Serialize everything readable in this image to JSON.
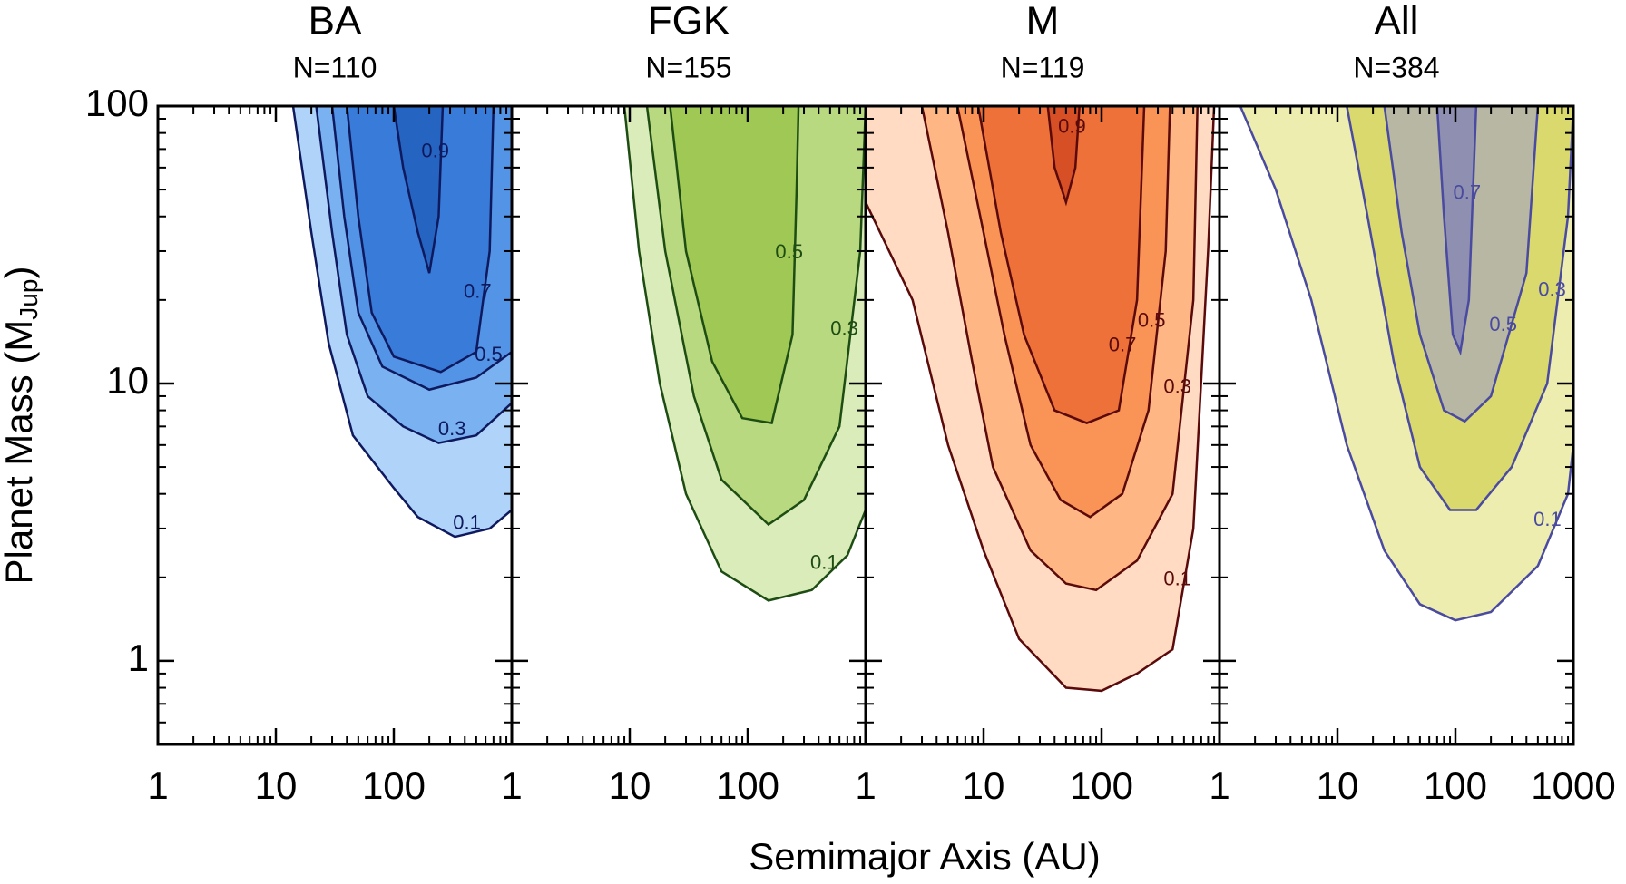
{
  "axes": {
    "xlabel": "Semimajor Axis (AU)",
    "ylabel": [
      "Planet Mass (M",
      "Jup",
      ")"
    ]
  },
  "chart_data": [
    {
      "type": "contour",
      "title": "BA",
      "subtitle": "N=110",
      "line_color": "#0f1a5e",
      "xlim": [
        1,
        1000
      ],
      "ylim": [
        0.5,
        100
      ],
      "log_x": true,
      "log_y": true,
      "xticks": [
        1,
        10,
        100
      ],
      "yticks": [
        1,
        10,
        100
      ],
      "contours": [
        {
          "level": 0.1,
          "color": "#2f8ff0",
          "x": [
            14,
            20,
            28,
            45,
            100,
            160,
            330,
            650,
            1000
          ],
          "y": [
            100,
            35,
            14,
            6.5,
            4.2,
            3.3,
            2.8,
            3.0,
            3.5
          ]
        },
        {
          "level": 0.3,
          "color": "#1f7ae6",
          "x": [
            22,
            30,
            40,
            60,
            120,
            240,
            500,
            1000
          ],
          "y": [
            100,
            35,
            15,
            9,
            7,
            6.1,
            6.5,
            8.5
          ]
        },
        {
          "level": 0.5,
          "color": "#1466d8",
          "x": [
            30,
            38,
            50,
            80,
            200,
            500,
            1000
          ],
          "y": [
            100,
            40,
            18,
            11.5,
            9.5,
            10.5,
            13
          ]
        },
        {
          "level": 0.7,
          "color": "#0d54c0",
          "x": [
            40,
            50,
            65,
            100,
            250,
            500,
            650,
            700
          ],
          "y": [
            100,
            40,
            18,
            12.5,
            11,
            13,
            30,
            100
          ]
        },
        {
          "level": 0.9,
          "color": "#0a3f9a",
          "x": [
            100,
            120,
            160,
            200,
            240,
            260
          ],
          "y": [
            100,
            60,
            35,
            25,
            40,
            100
          ]
        }
      ]
    },
    {
      "type": "contour",
      "title": "FGK",
      "subtitle": "N=155",
      "line_color": "#1e4d14",
      "xlim": [
        1,
        1000
      ],
      "ylim": [
        0.5,
        100
      ],
      "log_x": true,
      "log_y": true,
      "xticks": [
        1,
        10,
        100
      ],
      "yticks": [
        1,
        10,
        100
      ],
      "contours": [
        {
          "level": 0.1,
          "color": "#9ccc4a",
          "x": [
            9,
            12,
            18,
            30,
            60,
            150,
            350,
            700,
            1000
          ],
          "y": [
            100,
            30,
            10,
            4,
            2.1,
            1.65,
            1.8,
            2.4,
            3.5
          ]
        },
        {
          "level": 0.3,
          "color": "#86bb22",
          "x": [
            14,
            20,
            35,
            60,
            150,
            300,
            600,
            900,
            1000
          ],
          "y": [
            100,
            30,
            9,
            4.5,
            3.1,
            3.8,
            7,
            30,
            100
          ]
        },
        {
          "level": 0.5,
          "color": "#76ad0e",
          "x": [
            22,
            30,
            50,
            90,
            160,
            240,
            260,
            270
          ],
          "y": [
            100,
            30,
            12,
            7.5,
            7.2,
            15,
            50,
            100
          ]
        }
      ]
    },
    {
      "type": "contour",
      "title": "M",
      "subtitle": "N=119",
      "line_color": "#5a0a0a",
      "xlim": [
        1,
        1000
      ],
      "ylim": [
        0.5,
        100
      ],
      "log_x": true,
      "log_y": true,
      "xticks": [
        1,
        10,
        100
      ],
      "yticks": [
        1,
        10,
        100
      ],
      "contours": [
        {
          "level": 0.1,
          "color": "#ffa060",
          "x": [
            1,
            2.5,
            5,
            10,
            20,
            50,
            100,
            200,
            400,
            600,
            800,
            900
          ],
          "y": [
            45,
            20,
            6,
            2.5,
            1.2,
            0.8,
            0.78,
            0.9,
            1.1,
            3,
            30,
            100
          ]
        },
        {
          "level": 0.3,
          "color": "#ff7a20",
          "x": [
            3,
            5,
            8,
            12,
            25,
            50,
            90,
            200,
            400,
            600,
            650
          ],
          "y": [
            100,
            35,
            12,
            5,
            2.5,
            1.9,
            1.8,
            2.3,
            4,
            20,
            100
          ]
        },
        {
          "level": 0.5,
          "color": "#f25a0a",
          "x": [
            6,
            10,
            15,
            25,
            45,
            80,
            150,
            250,
            350,
            380
          ],
          "y": [
            100,
            35,
            15,
            6,
            3.8,
            3.3,
            4,
            8,
            30,
            100
          ]
        },
        {
          "level": 0.7,
          "color": "#d83a08",
          "x": [
            9,
            14,
            22,
            40,
            75,
            140,
            200,
            230
          ],
          "y": [
            100,
            35,
            15,
            8,
            7.2,
            8,
            20,
            100
          ]
        },
        {
          "level": 0.9,
          "color": "#b01808",
          "x": [
            35,
            40,
            50,
            60,
            65
          ],
          "y": [
            100,
            60,
            45,
            60,
            100
          ]
        }
      ]
    },
    {
      "type": "contour",
      "title": "All",
      "subtitle": "N=384",
      "line_color": "#4a4aa0",
      "xlim": [
        1,
        1000
      ],
      "ylim": [
        0.5,
        100
      ],
      "log_x": true,
      "log_y": true,
      "xticks": [
        1,
        10,
        100,
        1000
      ],
      "yticks": [
        1,
        10,
        100
      ],
      "contours": [
        {
          "level": 0.1,
          "color": "#d0d030",
          "x": [
            1.5,
            3,
            6,
            12,
            25,
            50,
            100,
            200,
            500,
            900,
            1000
          ],
          "y": [
            100,
            50,
            20,
            6,
            2.5,
            1.6,
            1.4,
            1.5,
            2.2,
            4,
            6
          ]
        },
        {
          "level": 0.3,
          "color": "#b8b800",
          "x": [
            12,
            18,
            30,
            50,
            90,
            150,
            300,
            600,
            900,
            1000
          ],
          "y": [
            100,
            40,
            12,
            5,
            3.5,
            3.5,
            5,
            10,
            40,
            100
          ]
        },
        {
          "level": 0.5,
          "color": "#8080ff",
          "x": [
            25,
            35,
            50,
            80,
            120,
            200,
            400,
            500
          ],
          "y": [
            100,
            35,
            15,
            8,
            7.3,
            9,
            25,
            100
          ]
        },
        {
          "level": 0.7,
          "color": "#5050c8",
          "x": [
            70,
            80,
            95,
            110,
            130,
            150
          ],
          "y": [
            100,
            40,
            15,
            13,
            20,
            100
          ]
        }
      ]
    }
  ]
}
